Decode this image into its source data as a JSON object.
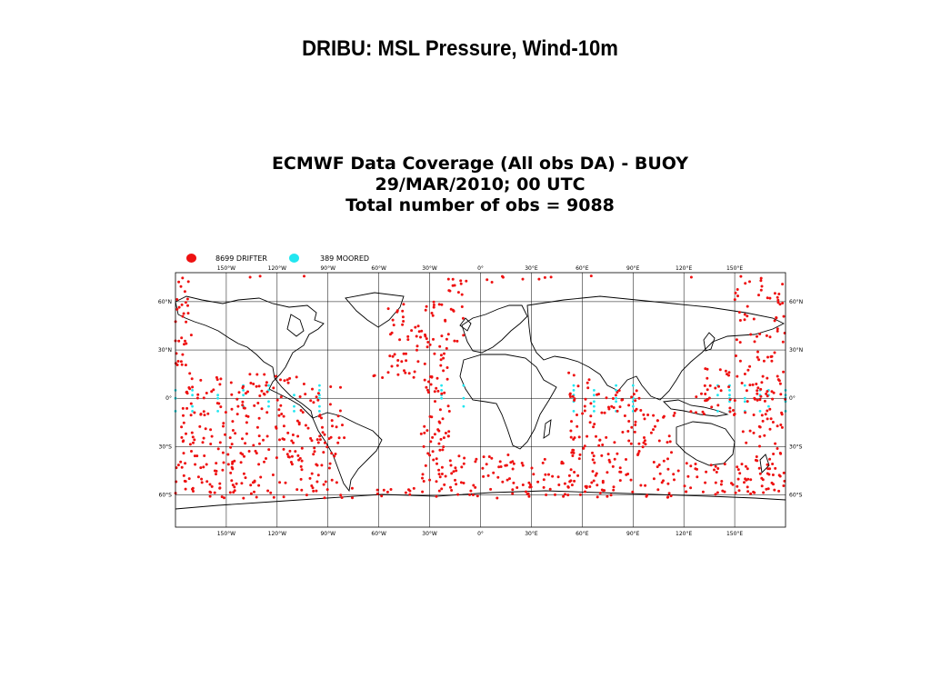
{
  "slide_title": "DRIBU: MSL Pressure, Wind-10m",
  "map": {
    "title_lines": [
      "ECMWF Data Coverage (All obs DA) - BUOY",
      "29/MAR/2010; 00 UTC",
      "Total number of obs = 9088"
    ],
    "legend": [
      {
        "label": "8699 DRIFTER",
        "color": "#ee1111"
      },
      {
        "label": "389 MOORED",
        "color": "#22e6f0"
      }
    ],
    "lon_labels": [
      "150°W",
      "120°W",
      "90°W",
      "60°W",
      "30°W",
      "0°",
      "30°E",
      "60°E",
      "90°E",
      "120°E",
      "150°E"
    ],
    "lat_labels": [
      "60°N",
      "30°N",
      "0°",
      "30°S",
      "60°S"
    ],
    "grid": true,
    "projection": "equirectangular",
    "colors": {
      "coastline": "#000000",
      "grid": "#000000",
      "frame": "#000000"
    }
  }
}
